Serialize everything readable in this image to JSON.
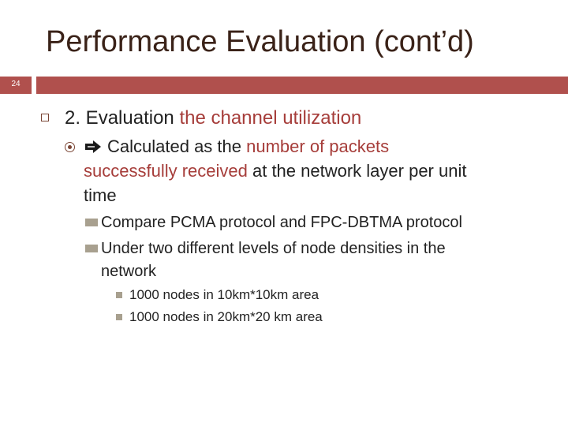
{
  "slide": {
    "title": "Performance Evaluation (cont’d)",
    "number": "24"
  },
  "colors": {
    "title": "#3a2218",
    "accent_bar": "#b0504d",
    "highlight": "#a63d3a",
    "bullet": "#a8a08f"
  },
  "level1": {
    "icon": "square-outline-bullet-icon",
    "prefix": "2. Evaluation ",
    "highlight": "the channel utilization"
  },
  "level2": {
    "icons": [
      "circle-target-bullet-icon",
      "right-arrow-icon"
    ],
    "line1_a": "Calculated as the ",
    "line1_b": "number of packets",
    "line2_a": "successfully received",
    "line2_b": " at the network layer per unit",
    "line3": "time"
  },
  "level3": [
    {
      "line1": "Compare PCMA protocol and FPC-DBTMA protocol"
    },
    {
      "line1": "Under two different levels of node densities in the",
      "line2": "network"
    }
  ],
  "level4": [
    "1000 nodes in 10km*10km area",
    "1000 nodes in 20km*20 km area"
  ]
}
